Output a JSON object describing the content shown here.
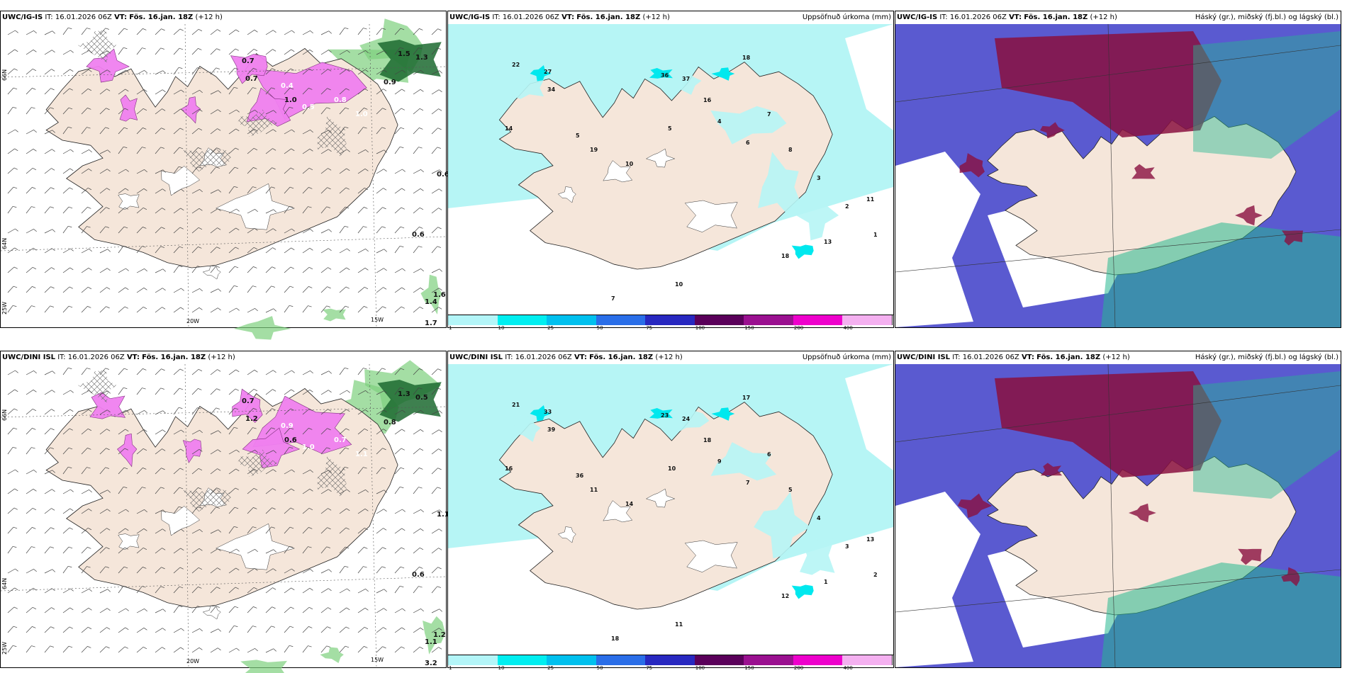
{
  "panels": [
    {
      "id": "p1",
      "model": "UWC/IG-IS",
      "it_label": "IT:",
      "it": "16.01.2026 06Z",
      "vt_label": "VT:",
      "vt": "Fös. 16.jan. 18Z",
      "lead": "(+12 h)",
      "right": ""
    },
    {
      "id": "p2",
      "model": "UWC/IG-IS",
      "it_label": "IT:",
      "it": "16.01.2026 06Z",
      "vt_label": "VT:",
      "vt": "Fös. 16.jan. 18Z",
      "lead": "(+12 h)",
      "right": "Uppsöfnuð úrkoma (mm)"
    },
    {
      "id": "p3",
      "model": "UWC/IG-IS",
      "it_label": "IT:",
      "it": "16.01.2026 06Z",
      "vt_label": "VT:",
      "vt": "Fös. 16.jan. 18Z",
      "lead": "(+12 h)",
      "right": "Háský (gr.), miðský (fj.bl.) og lágský (bl.)"
    },
    {
      "id": "p4",
      "model": "UWC/DINI ISL",
      "it_label": "IT:",
      "it": "16.01.2026 06Z",
      "vt_label": "VT:",
      "vt": "Fös. 16.jan. 18Z",
      "lead": "(+12 h)",
      "right": ""
    },
    {
      "id": "p5",
      "model": "UWC/DINI ISL",
      "it_label": "IT:",
      "it": "16.01.2026 06Z",
      "vt_label": "VT:",
      "vt": "Fös. 16.jan. 18Z",
      "lead": "(+12 h)",
      "right": "Uppsöfnuð úrkoma (mm)"
    },
    {
      "id": "p6",
      "model": "UWC/DINI ISL",
      "it_label": "IT:",
      "it": "16.01.2026 06Z",
      "vt_label": "VT:",
      "vt": "Fös. 16.jan. 18Z",
      "lead": "(+12 h)",
      "right": "Háský (gr.), miðský (fj.bl.) og lágský (bl.)"
    }
  ],
  "axis_labels": {
    "lat_66": "66N",
    "lat_64": "64N",
    "lon_25": "25W",
    "lon_20": "20W",
    "lon_15": "15W"
  },
  "colorbar": {
    "ticks": [
      "1",
      "10",
      "25",
      "50",
      "75",
      "100",
      "150",
      "200",
      "400"
    ],
    "colors": [
      "#b3f5f8",
      "#00eef0",
      "#00c0ee",
      "#2a6ee8",
      "#2828c0",
      "#5a005a",
      "#9a1090",
      "#ee00cc",
      "#f4b0f0"
    ]
  },
  "colors": {
    "land": "#f5e6da",
    "precip_light": "#b6f5f5",
    "snow_pink": "#f080f0",
    "green": "#7ed07e",
    "dark_green": "#1c6a30",
    "cloud_high": "#8a1040",
    "cloud_mid": "#5a5ad0",
    "cloud_low": "#26b890"
  },
  "wind_labels_top": [
    "0.7",
    "0.7",
    "1.0",
    "0.9",
    "1.5",
    "1.3",
    "0.6",
    "0.6",
    "1.6",
    "1.4",
    "1.7",
    "0.4",
    "0.5",
    "0.8",
    "1.0"
  ],
  "wind_labels_bottom": [
    "0.7",
    "1.2",
    "0.6",
    "0.8",
    "1.3",
    "0.5",
    "1.1",
    "0.6",
    "1.2",
    "1.1",
    "3.2",
    "0.9",
    "1.0",
    "0.7",
    "1.1"
  ],
  "precip_values_top": [
    "22",
    "27",
    "34",
    "36",
    "37",
    "18",
    "16",
    "14",
    "19",
    "10",
    "5",
    "4",
    "6",
    "7",
    "8",
    "3",
    "2",
    "1",
    "13",
    "11",
    "18",
    "10",
    "7",
    "5"
  ],
  "precip_values_bottom": [
    "21",
    "33",
    "39",
    "23",
    "24",
    "17",
    "18",
    "16",
    "11",
    "14",
    "10",
    "9",
    "7",
    "6",
    "5",
    "4",
    "3",
    "2",
    "1",
    "13",
    "12",
    "11",
    "18",
    "36"
  ]
}
